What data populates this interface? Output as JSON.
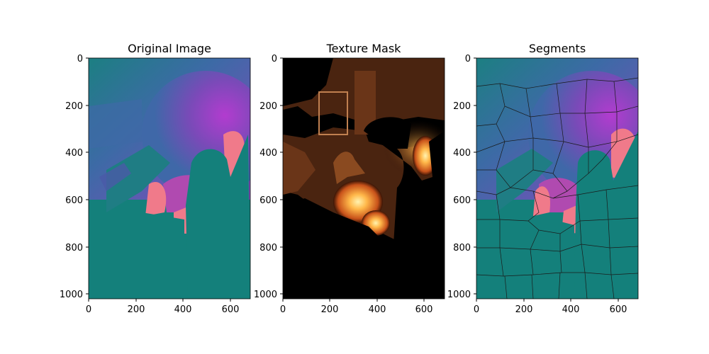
{
  "panels": [
    {
      "title": "Original Image"
    },
    {
      "title": "Texture Mask"
    },
    {
      "title": "Segments"
    }
  ],
  "axes": {
    "x_ticks": [
      "0",
      "200",
      "400",
      "600"
    ],
    "y_ticks": [
      "0",
      "200",
      "400",
      "600",
      "800",
      "1000"
    ]
  },
  "colors": {
    "teal": "#14807b",
    "blue_purple": "#4a5aa8",
    "magenta": "#a83cc8",
    "pink": "#f07a8a",
    "flame": "#ffb24a",
    "dark": "#000000",
    "boundary": "#1a1a1a"
  }
}
